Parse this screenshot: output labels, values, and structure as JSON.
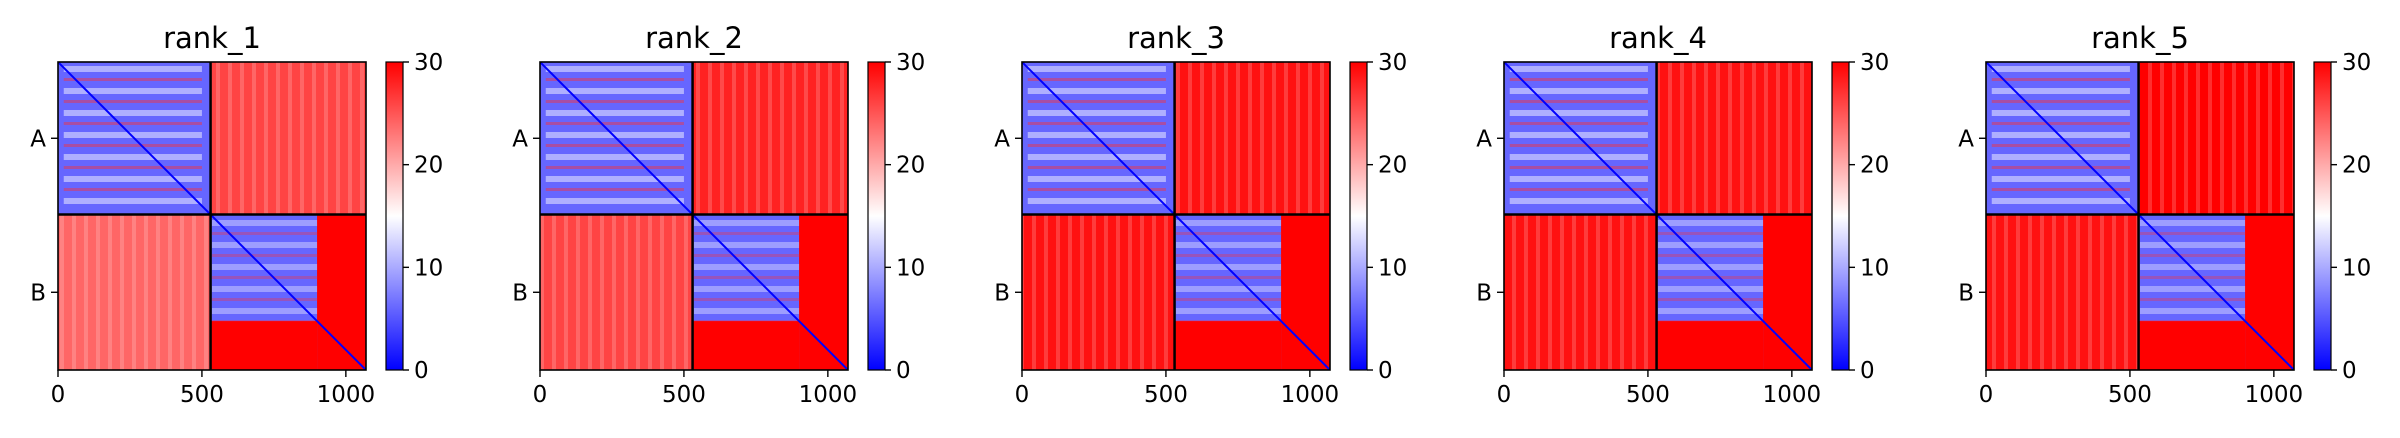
{
  "chart_data": [
    {
      "type": "heatmap",
      "title": "rank_1",
      "x_ticks": [
        "0",
        "500",
        "1000"
      ],
      "x_tick_values": [
        0,
        500,
        1000
      ],
      "x_range": [
        0,
        1070
      ],
      "y_labels": [
        "A",
        "B"
      ],
      "chain_boundary": 530,
      "colorbar": {
        "min": 0,
        "max": 30,
        "ticks": [
          "0",
          "10",
          "20",
          "30"
        ],
        "tick_values": [
          0,
          10,
          20,
          30
        ],
        "colormap": "bwr"
      },
      "blocks": [
        {
          "chain_pair": "A-A",
          "mean_value": 6
        },
        {
          "chain_pair": "A-B",
          "mean_value": 26
        },
        {
          "chain_pair": "B-A",
          "mean_value": 24
        },
        {
          "chain_pair": "B-B",
          "mean_value": 6
        }
      ]
    },
    {
      "type": "heatmap",
      "title": "rank_2",
      "x_ticks": [
        "0",
        "500",
        "1000"
      ],
      "x_tick_values": [
        0,
        500,
        1000
      ],
      "x_range": [
        0,
        1070
      ],
      "y_labels": [
        "A",
        "B"
      ],
      "chain_boundary": 530,
      "colorbar": {
        "min": 0,
        "max": 30,
        "ticks": [
          "0",
          "10",
          "20",
          "30"
        ],
        "tick_values": [
          0,
          10,
          20,
          30
        ],
        "colormap": "bwr"
      },
      "blocks": [
        {
          "chain_pair": "A-A",
          "mean_value": 6
        },
        {
          "chain_pair": "A-B",
          "mean_value": 28
        },
        {
          "chain_pair": "B-A",
          "mean_value": 26
        },
        {
          "chain_pair": "B-B",
          "mean_value": 6
        }
      ]
    },
    {
      "type": "heatmap",
      "title": "rank_3",
      "x_ticks": [
        "0",
        "500",
        "1000"
      ],
      "x_tick_values": [
        0,
        500,
        1000
      ],
      "x_range": [
        0,
        1070
      ],
      "y_labels": [
        "A",
        "B"
      ],
      "chain_boundary": 530,
      "colorbar": {
        "min": 0,
        "max": 30,
        "ticks": [
          "0",
          "10",
          "20",
          "30"
        ],
        "tick_values": [
          0,
          10,
          20,
          30
        ],
        "colormap": "bwr"
      },
      "blocks": [
        {
          "chain_pair": "A-A",
          "mean_value": 6
        },
        {
          "chain_pair": "A-B",
          "mean_value": 29
        },
        {
          "chain_pair": "B-A",
          "mean_value": 29
        },
        {
          "chain_pair": "B-B",
          "mean_value": 6
        }
      ]
    },
    {
      "type": "heatmap",
      "title": "rank_4",
      "x_ticks": [
        "0",
        "500",
        "1000"
      ],
      "x_tick_values": [
        0,
        500,
        1000
      ],
      "x_range": [
        0,
        1070
      ],
      "y_labels": [
        "A",
        "B"
      ],
      "chain_boundary": 530,
      "colorbar": {
        "min": 0,
        "max": 30,
        "ticks": [
          "0",
          "10",
          "20",
          "30"
        ],
        "tick_values": [
          0,
          10,
          20,
          30
        ],
        "colormap": "bwr"
      },
      "blocks": [
        {
          "chain_pair": "A-A",
          "mean_value": 6
        },
        {
          "chain_pair": "A-B",
          "mean_value": 29
        },
        {
          "chain_pair": "B-A",
          "mean_value": 29
        },
        {
          "chain_pair": "B-B",
          "mean_value": 6
        }
      ]
    },
    {
      "type": "heatmap",
      "title": "rank_5",
      "x_ticks": [
        "0",
        "500",
        "1000"
      ],
      "x_tick_values": [
        0,
        500,
        1000
      ],
      "x_range": [
        0,
        1070
      ],
      "y_labels": [
        "A",
        "B"
      ],
      "chain_boundary": 530,
      "colorbar": {
        "min": 0,
        "max": 30,
        "ticks": [
          "0",
          "10",
          "20",
          "30"
        ],
        "tick_values": [
          0,
          10,
          20,
          30
        ],
        "colormap": "bwr"
      },
      "blocks": [
        {
          "chain_pair": "A-A",
          "mean_value": 6
        },
        {
          "chain_pair": "A-B",
          "mean_value": 30
        },
        {
          "chain_pair": "B-A",
          "mean_value": 29
        },
        {
          "chain_pair": "B-B",
          "mean_value": 6
        }
      ]
    }
  ]
}
